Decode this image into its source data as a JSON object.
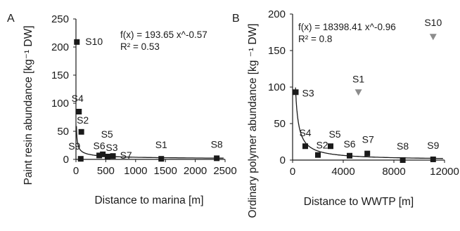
{
  "chart_data": [
    {
      "panel": "A",
      "type": "scatter",
      "xlabel": "Distance to marina [m]",
      "ylabel": "Paint resin abundance [kg⁻¹ DW]",
      "xlim": [
        0,
        2500
      ],
      "ylim": [
        0,
        250
      ],
      "xticks": [
        0,
        500,
        1000,
        1500,
        2000,
        2500
      ],
      "yticks": [
        0,
        50,
        100,
        150,
        200,
        250
      ],
      "grid": false,
      "equation": "f(x) = 193.65 x^-0.57",
      "r2": "R² = 0.53",
      "fit": {
        "a": 193.65,
        "b": -0.57
      },
      "series": [
        {
          "marker": "square",
          "color": "#1a1a1a",
          "points": [
            {
              "label": "S10",
              "x": 15,
              "y": 209
            },
            {
              "label": "S4",
              "x": 50,
              "y": 85
            },
            {
              "label": "S2",
              "x": 90,
              "y": 49
            },
            {
              "label": "S9",
              "x": 80,
              "y": 1
            },
            {
              "label": "S6",
              "x": 390,
              "y": 7
            },
            {
              "label": "S5",
              "x": 450,
              "y": 9
            },
            {
              "label": "S3",
              "x": 530,
              "y": 5
            },
            {
              "label": "S7",
              "x": 620,
              "y": 6
            },
            {
              "label": "S1",
              "x": 1430,
              "y": 1
            },
            {
              "label": "S8",
              "x": 2360,
              "y": 2
            }
          ]
        }
      ]
    },
    {
      "panel": "B",
      "type": "scatter",
      "xlabel": "Distance to WWTP [m]",
      "ylabel": "Ordinary polymer abundance [kg ⁻¹ DW]",
      "xlim": [
        0,
        12000
      ],
      "ylim": [
        0,
        200
      ],
      "xticks": [
        0,
        4000,
        8000,
        12000
      ],
      "yticks": [
        0,
        50,
        100,
        150,
        200
      ],
      "grid": false,
      "equation": "f(x) = 18398.41 x^-0.96",
      "r2": "R² = 0.8",
      "fit": {
        "a": 18398.41,
        "b": -0.96
      },
      "series": [
        {
          "marker": "square",
          "color": "#1a1a1a",
          "points": [
            {
              "label": "S3",
              "x": 250,
              "y": 93
            },
            {
              "label": "S4",
              "x": 1000,
              "y": 19
            },
            {
              "label": "S2",
              "x": 2000,
              "y": 7
            },
            {
              "label": "S5",
              "x": 3000,
              "y": 19
            },
            {
              "label": "S6",
              "x": 4500,
              "y": 6
            },
            {
              "label": "S7",
              "x": 5900,
              "y": 9
            },
            {
              "label": "S8",
              "x": 8700,
              "y": 0
            },
            {
              "label": "S9",
              "x": 11100,
              "y": 1
            }
          ]
        },
        {
          "marker": "triangle-down",
          "color": "#8c8c8c",
          "points": [
            {
              "label": "S1",
              "x": 5200,
              "y": 93
            },
            {
              "label": "S10",
              "x": 11100,
              "y": 169
            }
          ]
        }
      ]
    }
  ]
}
